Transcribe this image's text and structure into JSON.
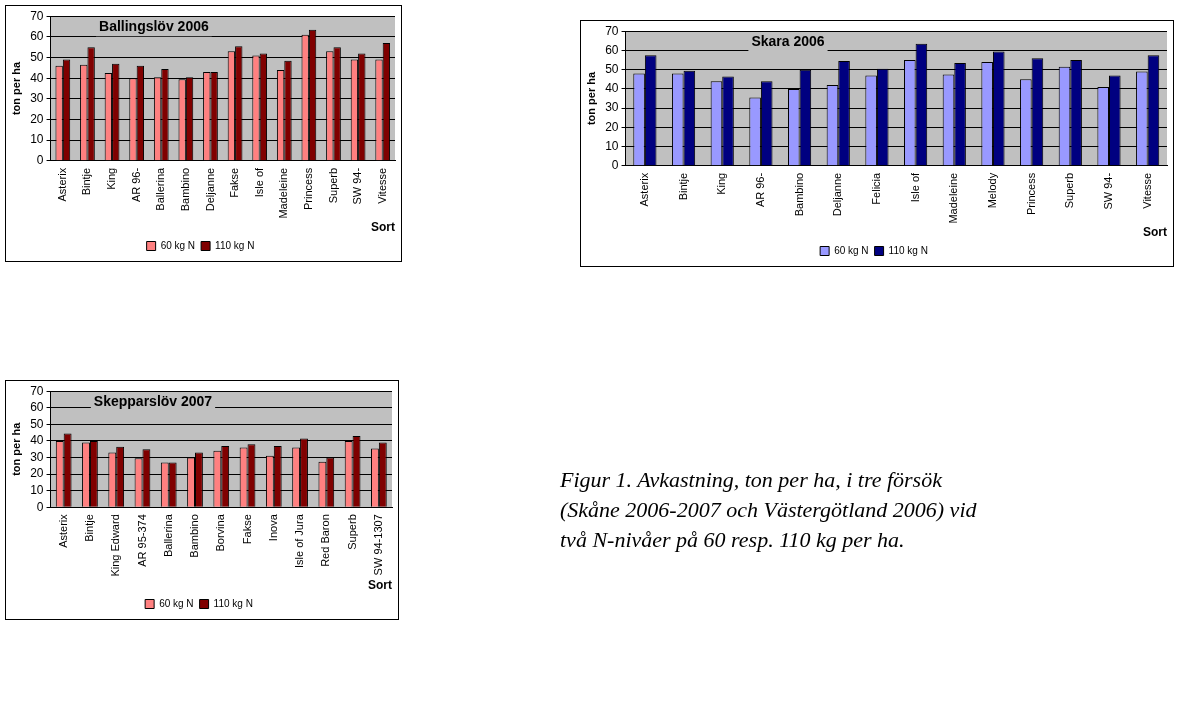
{
  "chart_data": [
    {
      "type": "bar",
      "title": "Ballingslöv 2006",
      "xlabel": "Sort",
      "ylabel": "ton per ha",
      "categories": [
        "Asterix",
        "Bintje",
        "King",
        "AR 96-",
        "Ballerina",
        "Bambino",
        "Deljanne",
        "Fakse",
        "Isle of",
        "Madeleine",
        "Princess",
        "Superb",
        "SW 94-",
        "Vitesse"
      ],
      "series": [
        {
          "name": "60 kg N",
          "color": "#ff8080",
          "values": [
            46,
            46.5,
            42.5,
            40,
            40.5,
            39.5,
            43,
            53,
            51,
            44,
            61,
            53,
            49,
            49
          ]
        },
        {
          "name": "110 kg N",
          "color": "#800000",
          "values": [
            49,
            55,
            47,
            46,
            44.5,
            40.5,
            43,
            55.5,
            52,
            48.5,
            63.5,
            55,
            52,
            57
          ]
        }
      ],
      "ylim": [
        0,
        70
      ],
      "yticks": [
        0,
        10,
        20,
        30,
        40,
        50,
        60,
        70
      ],
      "grid": "y",
      "legend": "bottom"
    },
    {
      "type": "bar",
      "title": "Skara 2006",
      "xlabel": "Sort",
      "ylabel": "ton per ha",
      "categories": [
        "Asterix",
        "Bintje",
        "King",
        "AR 96-",
        "Bambino",
        "Deljanne",
        "Felicia",
        "Isle of",
        "Madeleine",
        "Melody",
        "Princess",
        "Superb",
        "SW 94-",
        "Vitesse"
      ],
      "series": [
        {
          "name": "60 kg N",
          "color": "#9999ff",
          "values": [
            48,
            48,
            44,
            35.5,
            40,
            42,
            47,
            55,
            47.5,
            54,
            45,
            51.5,
            41,
            49
          ]
        },
        {
          "name": "110 kg N",
          "color": "#000080",
          "values": [
            57.5,
            49.5,
            46.5,
            44,
            50,
            54.5,
            50.5,
            63.5,
            53.5,
            59.5,
            56,
            55,
            47,
            57.5
          ]
        }
      ],
      "ylim": [
        0,
        70
      ],
      "yticks": [
        0,
        10,
        20,
        30,
        40,
        50,
        60,
        70
      ],
      "grid": "y",
      "legend": "bottom"
    },
    {
      "type": "bar",
      "title": "Skepparslöv 2007",
      "xlabel": "Sort",
      "ylabel": "ton per ha",
      "categories": [
        "Asterix",
        "Bintje",
        "King Edward",
        "AR 95-374",
        "Ballerina",
        "Bambino",
        "Borvina",
        "Fakse",
        "Inova",
        "Isle of Jura",
        "Red Baron",
        "Superb",
        "SW 94-1307"
      ],
      "series": [
        {
          "name": "60 kg N",
          "color": "#ff8080",
          "values": [
            40,
            39,
            33,
            29.5,
            27,
            30,
            34,
            36,
            31,
            36,
            27.5,
            40,
            35.5
          ]
        },
        {
          "name": "110 kg N",
          "color": "#800000",
          "values": [
            44.5,
            40,
            36.5,
            35,
            27,
            33,
            37,
            38,
            37,
            41.5,
            30,
            43,
            39
          ]
        }
      ],
      "ylim": [
        0,
        70
      ],
      "yticks": [
        0,
        10,
        20,
        30,
        40,
        50,
        60,
        70
      ],
      "grid": "y",
      "legend": "bottom",
      "annotations": [
        "Figur 1. Avkastning, ton per ha, i tre försök (Skåne 2006-2007 och Västergötland 2006) vid två N-nivåer på 60 resp. 110 kg per ha."
      ]
    }
  ]
}
